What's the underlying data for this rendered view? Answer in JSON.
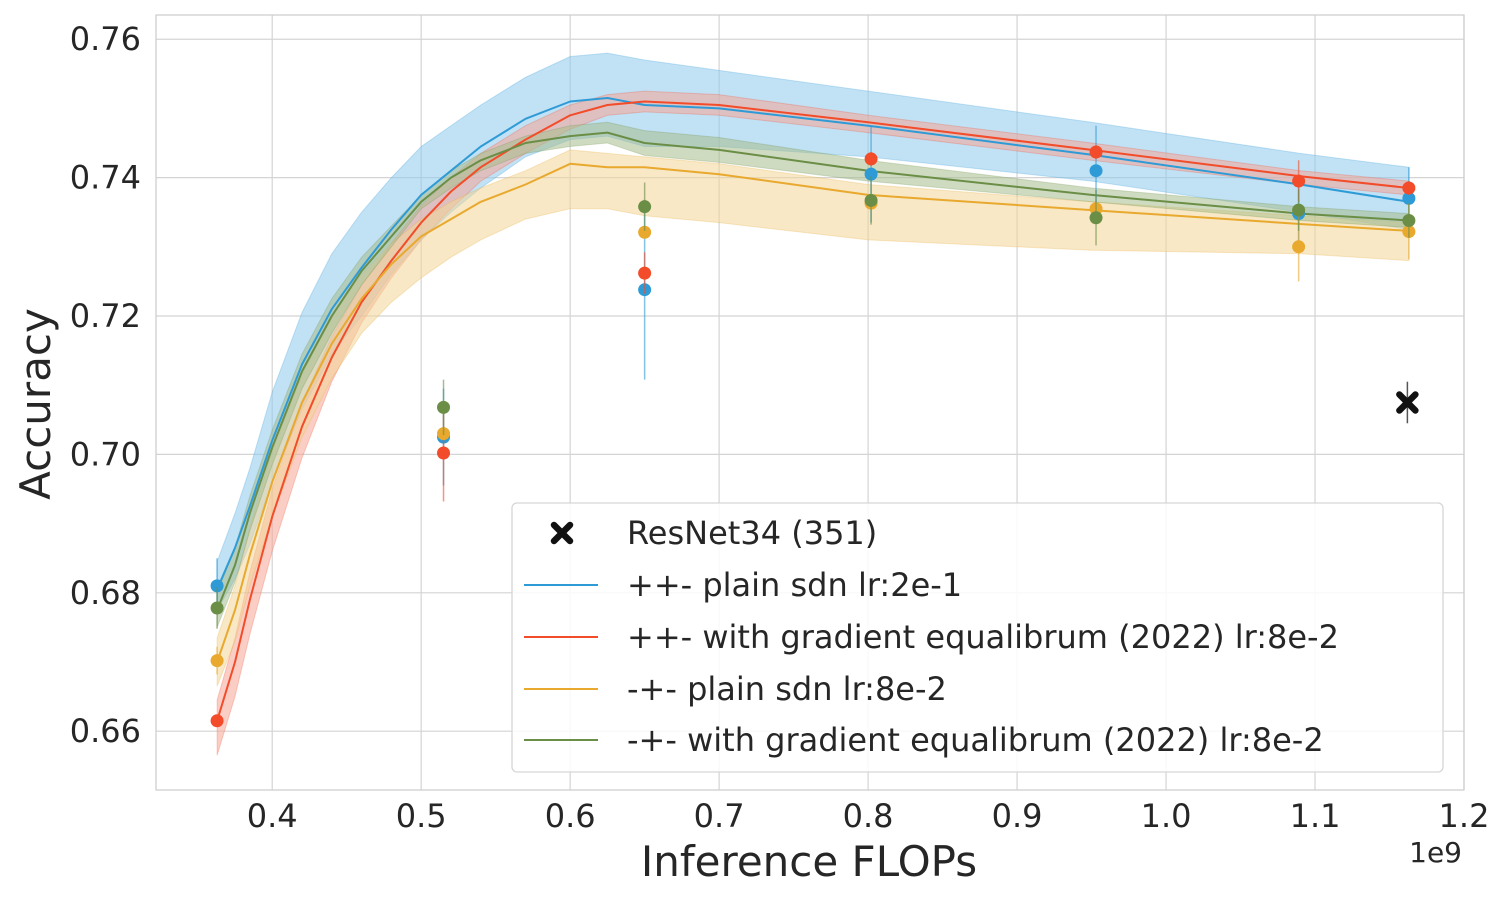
{
  "chart_data": {
    "type": "line",
    "xlabel": "Inference FLOPs",
    "ylabel": "Accuracy",
    "x_offset_label": "1e9",
    "xlim": [
      0.322,
      1.2
    ],
    "ylim": [
      0.6515,
      0.7635
    ],
    "xticks": [
      0.4,
      0.5,
      0.6,
      0.7,
      0.8,
      0.9,
      1.0,
      1.1,
      1.2
    ],
    "xtick_labels": [
      "0.4",
      "0.5",
      "0.6",
      "0.7",
      "0.8",
      "0.9",
      "1.0",
      "1.1",
      "1.2"
    ],
    "yticks": [
      0.66,
      0.68,
      0.7,
      0.72,
      0.74,
      0.76
    ],
    "ytick_labels": [
      "0.66",
      "0.68",
      "0.70",
      "0.72",
      "0.74",
      "0.76"
    ],
    "grid": true,
    "legend_position": "lower-right",
    "baseline": {
      "name": "ResNet34 (351)",
      "marker": "x",
      "color": "#111111",
      "x": 1.162,
      "y": 0.7075,
      "err": 0.003
    },
    "series": [
      {
        "name": "++- plain sdn lr:2e-1",
        "color": "#2e9bd6",
        "fill": "#8ec9ec",
        "curve_x": [
          0.363,
          0.375,
          0.385,
          0.4,
          0.42,
          0.44,
          0.46,
          0.48,
          0.5,
          0.52,
          0.54,
          0.57,
          0.6,
          0.625,
          0.65,
          0.7,
          0.8,
          0.95,
          1.09,
          1.163
        ],
        "curve_y": [
          0.6805,
          0.6865,
          0.6925,
          0.702,
          0.713,
          0.721,
          0.727,
          0.7325,
          0.7375,
          0.741,
          0.7445,
          0.7485,
          0.751,
          0.7515,
          0.7505,
          0.75,
          0.7475,
          0.7433,
          0.739,
          0.7365
        ],
        "band_upper": [
          0.6845,
          0.6915,
          0.698,
          0.709,
          0.7205,
          0.729,
          0.735,
          0.74,
          0.7445,
          0.7475,
          0.7505,
          0.7545,
          0.7575,
          0.758,
          0.757,
          0.7555,
          0.7525,
          0.748,
          0.7435,
          0.7415
        ],
        "band_lower": [
          0.6775,
          0.682,
          0.687,
          0.696,
          0.7065,
          0.7145,
          0.72,
          0.726,
          0.731,
          0.735,
          0.7385,
          0.743,
          0.7455,
          0.746,
          0.7445,
          0.7445,
          0.743,
          0.7395,
          0.735,
          0.7325
        ],
        "points": [
          {
            "x": 0.363,
            "y": 0.681,
            "err": 0.004
          },
          {
            "x": 0.515,
            "y": 0.7025,
            "err": 0.007
          },
          {
            "x": 0.65,
            "y": 0.7238,
            "err": 0.013
          },
          {
            "x": 0.802,
            "y": 0.7405,
            "err": 0.007
          },
          {
            "x": 0.953,
            "y": 0.741,
            "err": 0.0065
          },
          {
            "x": 1.089,
            "y": 0.7348,
            "err": 0.004
          },
          {
            "x": 1.163,
            "y": 0.737,
            "err": 0.0045
          }
        ]
      },
      {
        "name": "++- with gradient equalibrum (2022) lr:8e-2",
        "color": "#f24c2a",
        "fill": "#f6a696",
        "curve_x": [
          0.363,
          0.375,
          0.385,
          0.4,
          0.42,
          0.44,
          0.46,
          0.48,
          0.5,
          0.52,
          0.54,
          0.57,
          0.6,
          0.625,
          0.65,
          0.7,
          0.8,
          0.95,
          1.09,
          1.163
        ],
        "curve_y": [
          0.6615,
          0.67,
          0.679,
          0.691,
          0.704,
          0.714,
          0.722,
          0.728,
          0.7335,
          0.738,
          0.7415,
          0.7455,
          0.749,
          0.7505,
          0.751,
          0.7505,
          0.748,
          0.744,
          0.7402,
          0.7385
        ],
        "band_upper": [
          0.6645,
          0.6735,
          0.683,
          0.695,
          0.7075,
          0.717,
          0.7245,
          0.7305,
          0.736,
          0.74,
          0.7435,
          0.7475,
          0.7505,
          0.752,
          0.7525,
          0.752,
          0.749,
          0.745,
          0.741,
          0.7395
        ],
        "band_lower": [
          0.6565,
          0.665,
          0.674,
          0.686,
          0.6995,
          0.7105,
          0.719,
          0.7255,
          0.731,
          0.7355,
          0.7395,
          0.7435,
          0.747,
          0.749,
          0.7495,
          0.749,
          0.7465,
          0.7425,
          0.739,
          0.7375
        ],
        "points": [
          {
            "x": 0.363,
            "y": 0.6615,
            "err": 0.0
          },
          {
            "x": 0.515,
            "y": 0.7002,
            "err": 0.007
          },
          {
            "x": 0.65,
            "y": 0.7262,
            "err": 0.003
          },
          {
            "x": 0.802,
            "y": 0.7427,
            "err": 0.001
          },
          {
            "x": 0.953,
            "y": 0.7437,
            "err": 0.001
          },
          {
            "x": 1.089,
            "y": 0.7395,
            "err": 0.003
          },
          {
            "x": 1.163,
            "y": 0.7385,
            "err": 0.001
          }
        ]
      },
      {
        "name": "-+- plain sdn lr:8e-2",
        "color": "#e8a92e",
        "fill": "#f2d597",
        "curve_x": [
          0.363,
          0.375,
          0.385,
          0.4,
          0.42,
          0.44,
          0.46,
          0.48,
          0.5,
          0.52,
          0.54,
          0.57,
          0.6,
          0.625,
          0.65,
          0.7,
          0.8,
          0.95,
          1.09,
          1.163
        ],
        "curve_y": [
          0.67,
          0.6775,
          0.6855,
          0.696,
          0.7075,
          0.716,
          0.7225,
          0.7275,
          0.7315,
          0.734,
          0.7365,
          0.739,
          0.742,
          0.7415,
          0.7415,
          0.7405,
          0.7375,
          0.7353,
          0.7333,
          0.7323
        ],
        "band_upper": [
          0.6735,
          0.681,
          0.6895,
          0.7005,
          0.7115,
          0.72,
          0.726,
          0.7305,
          0.734,
          0.7365,
          0.7385,
          0.741,
          0.744,
          0.7435,
          0.743,
          0.742,
          0.739,
          0.7365,
          0.7345,
          0.7335
        ],
        "band_lower": [
          0.6665,
          0.673,
          0.681,
          0.691,
          0.7025,
          0.711,
          0.7175,
          0.722,
          0.7255,
          0.7285,
          0.731,
          0.734,
          0.7355,
          0.7355,
          0.7345,
          0.7335,
          0.731,
          0.7295,
          0.729,
          0.728
        ],
        "points": [
          {
            "x": 0.363,
            "y": 0.6702,
            "err": 0.002
          },
          {
            "x": 0.515,
            "y": 0.703,
            "err": 0.0
          },
          {
            "x": 0.65,
            "y": 0.7321,
            "err": 0.0
          },
          {
            "x": 0.802,
            "y": 0.7363,
            "err": 0.0
          },
          {
            "x": 0.953,
            "y": 0.7355,
            "err": 0.0
          },
          {
            "x": 1.089,
            "y": 0.73,
            "err": 0.005
          },
          {
            "x": 1.163,
            "y": 0.7322,
            "err": 0.004
          }
        ]
      },
      {
        "name": "-+- with gradient equalibrum (2022) lr:8e-2",
        "color": "#6b8e47",
        "fill": "#a8bd8c",
        "curve_x": [
          0.363,
          0.375,
          0.385,
          0.4,
          0.42,
          0.44,
          0.46,
          0.48,
          0.5,
          0.52,
          0.54,
          0.57,
          0.6,
          0.625,
          0.65,
          0.7,
          0.8,
          0.95,
          1.09,
          1.163
        ],
        "curve_y": [
          0.6775,
          0.684,
          0.6915,
          0.701,
          0.712,
          0.72,
          0.7265,
          0.7315,
          0.7365,
          0.74,
          0.7425,
          0.745,
          0.746,
          0.7465,
          0.745,
          0.744,
          0.741,
          0.7375,
          0.7348,
          0.7338
        ],
        "band_upper": [
          0.68,
          0.6865,
          0.694,
          0.7035,
          0.7145,
          0.7225,
          0.7285,
          0.733,
          0.7375,
          0.741,
          0.7435,
          0.746,
          0.7475,
          0.748,
          0.7468,
          0.7458,
          0.7425,
          0.7385,
          0.7358,
          0.7348
        ],
        "band_lower": [
          0.675,
          0.6815,
          0.689,
          0.6985,
          0.7095,
          0.7175,
          0.7245,
          0.73,
          0.7355,
          0.7385,
          0.741,
          0.7435,
          0.7445,
          0.745,
          0.7432,
          0.7422,
          0.7395,
          0.7365,
          0.7338,
          0.7328
        ],
        "points": [
          {
            "x": 0.363,
            "y": 0.6778,
            "err": 0.003
          },
          {
            "x": 0.515,
            "y": 0.7068,
            "err": 0.004
          },
          {
            "x": 0.65,
            "y": 0.7358,
            "err": 0.0035
          },
          {
            "x": 0.802,
            "y": 0.7367,
            "err": 0.0035
          },
          {
            "x": 0.953,
            "y": 0.7342,
            "err": 0.004
          },
          {
            "x": 1.089,
            "y": 0.7353,
            "err": 0.003
          },
          {
            "x": 1.163,
            "y": 0.7338,
            "err": 0.0025
          }
        ]
      }
    ]
  }
}
